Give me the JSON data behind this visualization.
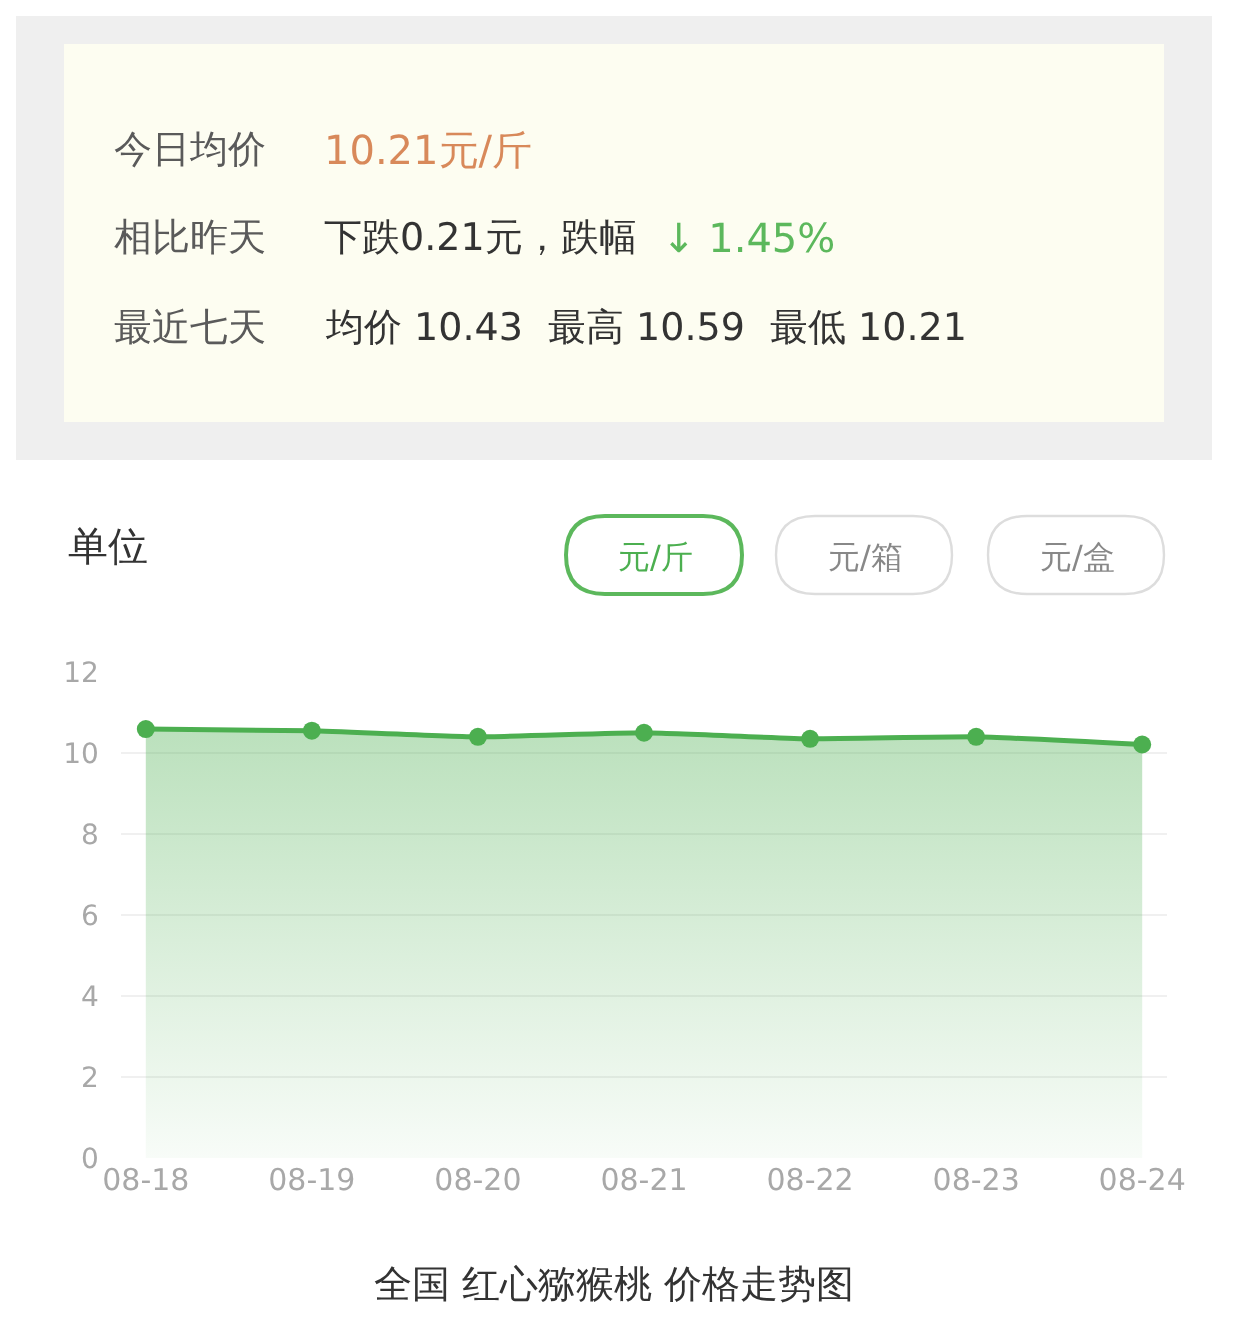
{
  "chart_data": {
    "type": "area",
    "title": "全国 红心猕猴桃 价格走势图",
    "categories": [
      "08-18",
      "08-19",
      "08-20",
      "08-21",
      "08-22",
      "08-23",
      "08-24"
    ],
    "series": [
      {
        "color": "#4caf50",
        "values": [
          10.59,
          10.55,
          10.4,
          10.5,
          10.35,
          10.4,
          10.21
        ]
      }
    ],
    "ylim": [
      0,
      12
    ],
    "yticks": [
      0,
      2,
      4,
      6,
      8,
      10,
      12
    ],
    "grid": "y",
    "marker": "circle",
    "line_style": "solid",
    "annotations": [
      "今日均价",
      "10.21元/斤",
      "相比昨天",
      "下跌0.21元，跌幅",
      "↓ 1.45%",
      "最近七天",
      "均价 10.43",
      "最高 10.59",
      "最低 10.21",
      "单位",
      "元/斤",
      "元/箱",
      "元/盒"
    ]
  }
}
